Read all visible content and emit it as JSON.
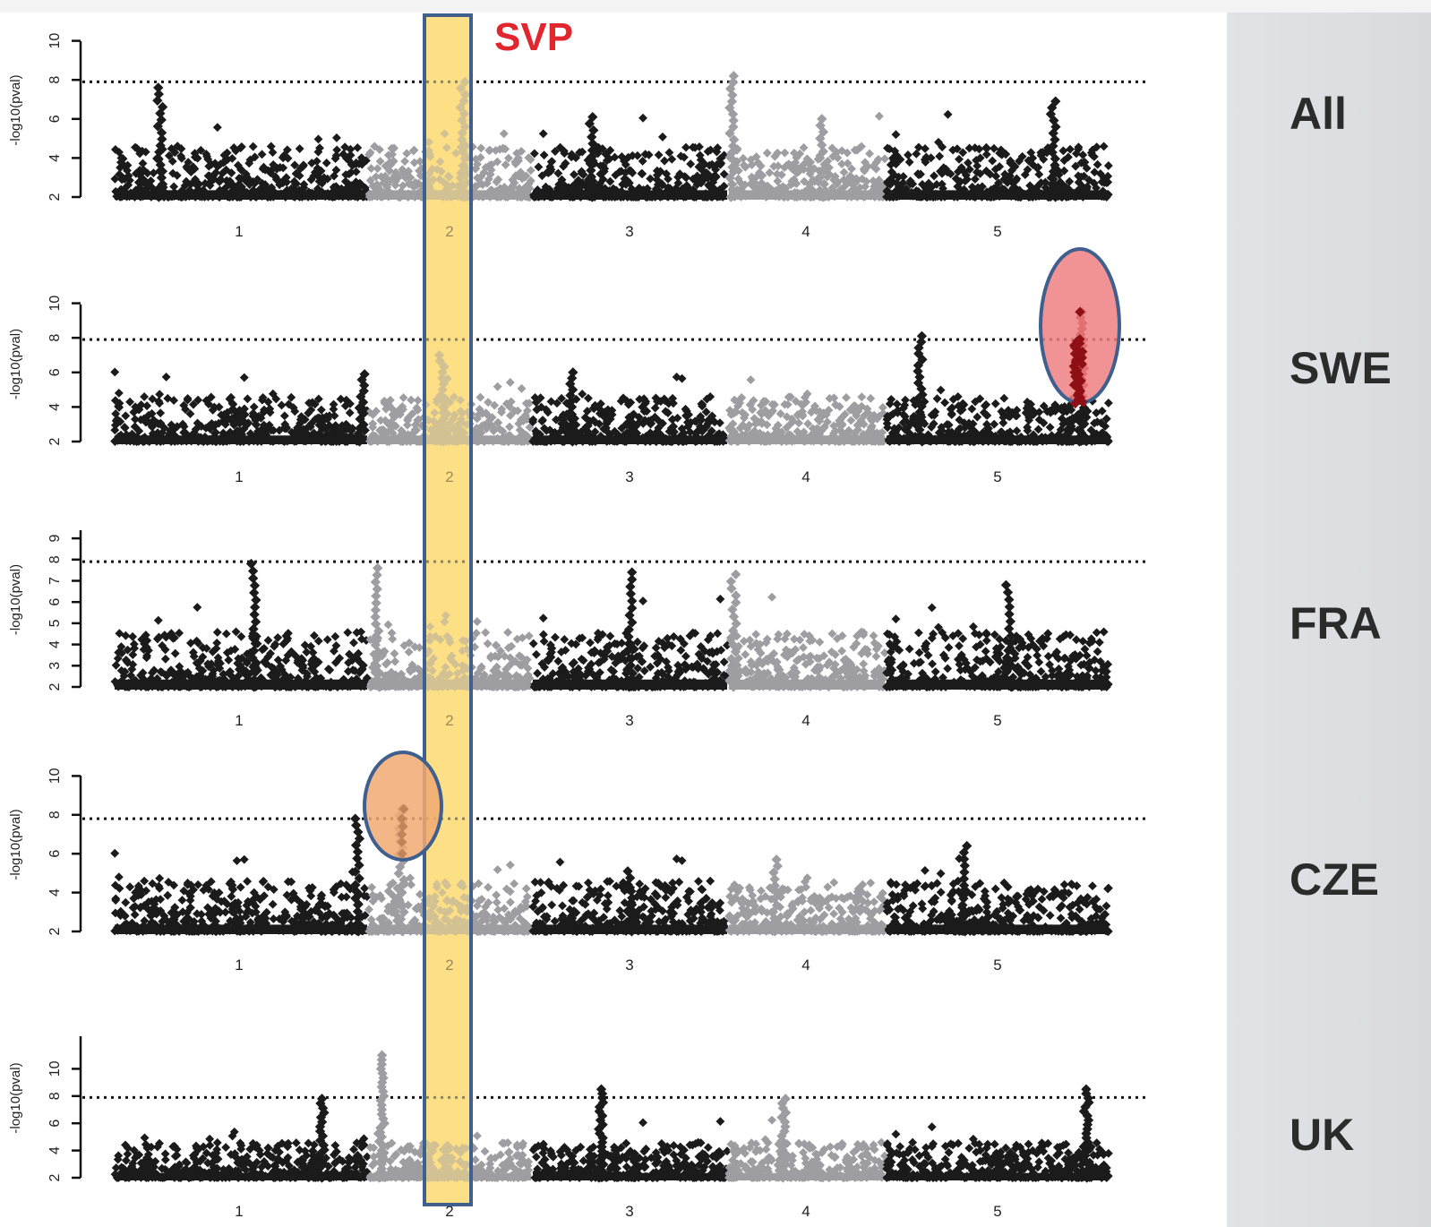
{
  "highlight_label": "SVP",
  "colors": {
    "odd_chr": "#1b1b1b",
    "even_chr": "#9e9ea2",
    "highlight_fill": "#fde086",
    "highlight_border": "#3f5f8f",
    "svp_text": "#e2262d",
    "swe_ellipse": "#ef7f82",
    "cze_ellipse": "#f0a972",
    "swe_peak_points": "#8e0f14"
  },
  "chart_data": [
    {
      "type": "scatter",
      "panel": "All",
      "ylabel": "-log10(pval)",
      "yticks": [
        "2",
        "4",
        "6",
        "8",
        "10"
      ],
      "ylim": [
        2,
        10
      ],
      "threshold": 7.9,
      "xticks": [
        "1",
        "2",
        "3",
        "4",
        "5"
      ],
      "peaks": [
        {
          "chr": 1,
          "pos": 0.18,
          "value": 7.6
        },
        {
          "chr": 2,
          "pos": 0.58,
          "value": 7.9
        },
        {
          "chr": 3,
          "pos": 0.3,
          "value": 6.1
        },
        {
          "chr": 4,
          "pos": 0.02,
          "value": 8.2
        },
        {
          "chr": 4,
          "pos": 0.6,
          "value": 6.0
        },
        {
          "chr": 5,
          "pos": 0.75,
          "value": 6.9
        }
      ]
    },
    {
      "type": "scatter",
      "panel": "SWE",
      "ylabel": "-log10(pval)",
      "yticks": [
        "2",
        "4",
        "6",
        "8",
        "10"
      ],
      "ylim": [
        2,
        10
      ],
      "threshold": 7.9,
      "xticks": [
        "1",
        "2",
        "3",
        "4",
        "5"
      ],
      "peaks": [
        {
          "chr": 1,
          "pos": 0.98,
          "value": 5.9
        },
        {
          "chr": 2,
          "pos": 0.45,
          "value": 7.0
        },
        {
          "chr": 3,
          "pos": 0.2,
          "value": 6.0
        },
        {
          "chr": 5,
          "pos": 0.15,
          "value": 8.1
        },
        {
          "chr": 5,
          "pos": 0.88,
          "value": 9.5
        }
      ]
    },
    {
      "type": "scatter",
      "panel": "FRA",
      "ylabel": "-log10(pval)",
      "yticks": [
        "2",
        "3",
        "4",
        "5",
        "6",
        "7",
        "8",
        "9"
      ],
      "ylim": [
        2,
        9
      ],
      "threshold": 7.9,
      "xticks": [
        "1",
        "2",
        "3",
        "4",
        "5"
      ],
      "peaks": [
        {
          "chr": 1,
          "pos": 0.55,
          "value": 7.8
        },
        {
          "chr": 2,
          "pos": 0.05,
          "value": 7.6
        },
        {
          "chr": 3,
          "pos": 0.5,
          "value": 7.4
        },
        {
          "chr": 4,
          "pos": 0.03,
          "value": 7.3
        },
        {
          "chr": 5,
          "pos": 0.55,
          "value": 6.8
        }
      ]
    },
    {
      "type": "scatter",
      "panel": "CZE",
      "ylabel": "-log10(pval)",
      "yticks": [
        "2",
        "4",
        "6",
        "8",
        "10"
      ],
      "ylim": [
        2,
        10
      ],
      "threshold": 7.8,
      "xticks": [
        "1",
        "2",
        "3",
        "4",
        "5"
      ],
      "peaks": [
        {
          "chr": 1,
          "pos": 0.96,
          "value": 7.8
        },
        {
          "chr": 2,
          "pos": 0.2,
          "value": 8.3
        },
        {
          "chr": 3,
          "pos": 0.5,
          "value": 5.1
        },
        {
          "chr": 4,
          "pos": 0.3,
          "value": 5.7
        },
        {
          "chr": 5,
          "pos": 0.35,
          "value": 6.4
        }
      ]
    },
    {
      "type": "scatter",
      "panel": "UK",
      "ylabel": "-log10(pval)",
      "yticks": [
        "2",
        "4",
        "6",
        "8",
        "10"
      ],
      "ylim": [
        2,
        12
      ],
      "threshold": 7.9,
      "xticks": [
        "1",
        "2",
        "3",
        "4",
        "5"
      ],
      "peaks": [
        {
          "chr": 1,
          "pos": 0.82,
          "value": 7.8
        },
        {
          "chr": 2,
          "pos": 0.08,
          "value": 11.0
        },
        {
          "chr": 3,
          "pos": 0.35,
          "value": 8.5
        },
        {
          "chr": 4,
          "pos": 0.35,
          "value": 7.8
        },
        {
          "chr": 5,
          "pos": 0.9,
          "value": 8.5
        }
      ]
    }
  ]
}
